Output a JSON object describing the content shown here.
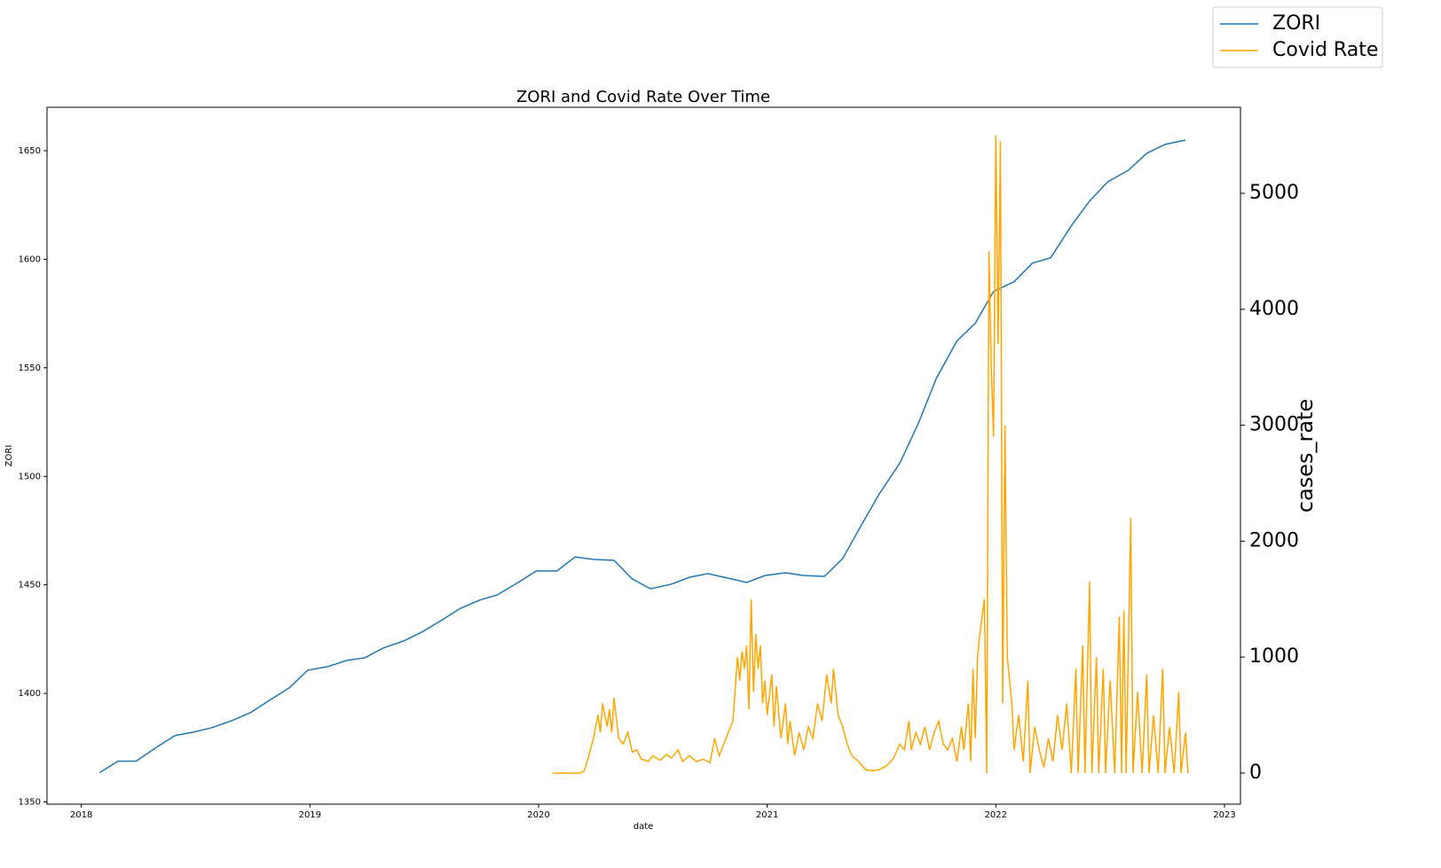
{
  "chart_data": {
    "type": "line",
    "title": "ZORI and Covid Rate Over Time",
    "xlabel": "date",
    "ylabel": "ZORI",
    "y2label": "cases_rate",
    "xlim": [
      2017.85,
      2023.07
    ],
    "xticks": [
      2018,
      2019,
      2020,
      2021,
      2022,
      2023
    ],
    "ylim": [
      1349,
      1670
    ],
    "yticks": [
      1350,
      1400,
      1450,
      1500,
      1550,
      1600,
      1650
    ],
    "y2lim": [
      -268,
      5742
    ],
    "y2ticks": [
      0,
      1000,
      2000,
      3000,
      4000,
      5000
    ],
    "legend_loc": "upper right",
    "series": [
      {
        "name": "ZORI",
        "color": "#1f77b4",
        "x": [
          2018.08,
          2018.16,
          2018.24,
          2018.33,
          2018.41,
          2018.49,
          2018.57,
          2018.66,
          2018.74,
          2018.83,
          2018.91,
          2018.99,
          2019.08,
          2019.16,
          2019.24,
          2019.32,
          2019.41,
          2019.49,
          2019.58,
          2019.66,
          2019.74,
          2019.82,
          2019.91,
          2019.99,
          2020.08,
          2020.16,
          2020.24,
          2020.33,
          2020.41,
          2020.49,
          2020.58,
          2020.66,
          2020.74,
          2020.83,
          2020.91,
          2020.99,
          2021.08,
          2021.16,
          2021.25,
          2021.33,
          2021.41,
          2021.49,
          2021.58,
          2021.66,
          2021.74,
          2021.83,
          2021.91,
          2021.99,
          2022.08,
          2022.16,
          2022.24,
          2022.33,
          2022.41,
          2022.49,
          2022.58,
          2022.66,
          2022.74,
          2022.83
        ],
        "values": [
          1363.5,
          1368.8,
          1368.8,
          1375.3,
          1380.6,
          1382.2,
          1384.2,
          1387.5,
          1391.2,
          1397.3,
          1402.6,
          1410.7,
          1412.4,
          1415.2,
          1416.4,
          1420.9,
          1424.2,
          1428.3,
          1434,
          1439.3,
          1442.9,
          1445.4,
          1451.1,
          1456.4,
          1456.4,
          1462.9,
          1461.7,
          1461.3,
          1452.7,
          1448.2,
          1450.3,
          1453.5,
          1455.2,
          1453.1,
          1451.1,
          1454.3,
          1455.6,
          1454.3,
          1453.9,
          1462.1,
          1477.2,
          1491.9,
          1506.1,
          1524.1,
          1545.2,
          1562.4,
          1570.5,
          1585.2,
          1589.7,
          1598.2,
          1600.7,
          1615.4,
          1626.8,
          1635.7,
          1641,
          1648.8,
          1652.9,
          1654.9
        ]
      },
      {
        "name": "Covid Rate",
        "color": "#ffa500",
        "axis": "y2",
        "x": [
          2020.06,
          2020.1,
          2020.14,
          2020.18,
          2020.2,
          2020.22,
          2020.24,
          2020.26,
          2020.27,
          2020.28,
          2020.3,
          2020.31,
          2020.32,
          2020.33,
          2020.35,
          2020.37,
          2020.39,
          2020.41,
          2020.43,
          2020.45,
          2020.48,
          2020.5,
          2020.53,
          2020.56,
          2020.58,
          2020.61,
          2020.63,
          2020.66,
          2020.69,
          2020.72,
          2020.75,
          2020.77,
          2020.79,
          2020.81,
          2020.83,
          2020.85,
          2020.87,
          2020.88,
          2020.89,
          2020.9,
          2020.91,
          2020.92,
          2020.93,
          2020.94,
          2020.95,
          2020.96,
          2020.97,
          2020.98,
          2020.99,
          2021.0,
          2021.02,
          2021.03,
          2021.04,
          2021.06,
          2021.08,
          2021.09,
          2021.1,
          2021.12,
          2021.14,
          2021.16,
          2021.18,
          2021.2,
          2021.22,
          2021.24,
          2021.26,
          2021.28,
          2021.29,
          2021.31,
          2021.33,
          2021.35,
          2021.37,
          2021.4,
          2021.43,
          2021.46,
          2021.49,
          2021.52,
          2021.55,
          2021.58,
          2021.6,
          2021.62,
          2021.63,
          2021.65,
          2021.67,
          2021.69,
          2021.71,
          2021.73,
          2021.75,
          2021.77,
          2021.79,
          2021.81,
          2021.83,
          2021.85,
          2021.86,
          2021.88,
          2021.89,
          2021.9,
          2021.91,
          2021.92,
          2021.93,
          2021.95,
          2021.96,
          2021.97,
          2021.98,
          2021.99,
          2022.0,
          2022.01,
          2022.02,
          2022.03,
          2022.04,
          2022.05,
          2022.07,
          2022.08,
          2022.1,
          2022.12,
          2022.14,
          2022.15,
          2022.17,
          2022.19,
          2022.21,
          2022.23,
          2022.25,
          2022.27,
          2022.29,
          2022.31,
          2022.33,
          2022.35,
          2022.36,
          2022.38,
          2022.39,
          2022.41,
          2022.42,
          2022.44,
          2022.45,
          2022.47,
          2022.48,
          2022.5,
          2022.52,
          2022.54,
          2022.55,
          2022.56,
          2022.57,
          2022.59,
          2022.6,
          2022.62,
          2022.64,
          2022.66,
          2022.67,
          2022.69,
          2022.71,
          2022.73,
          2022.74,
          2022.76,
          2022.78,
          2022.8,
          2022.81,
          2022.83,
          2022.84
        ],
        "values": [
          0,
          0,
          0,
          0,
          20,
          150,
          300,
          500,
          350,
          600,
          400,
          550,
          350,
          650,
          300,
          250,
          350,
          180,
          200,
          120,
          100,
          150,
          110,
          160,
          130,
          200,
          100,
          150,
          100,
          120,
          90,
          300,
          150,
          250,
          350,
          450,
          1000,
          800,
          1050,
          900,
          1100,
          550,
          1500,
          700,
          1200,
          900,
          1100,
          600,
          800,
          500,
          850,
          400,
          750,
          300,
          600,
          250,
          450,
          150,
          350,
          200,
          400,
          300,
          600,
          450,
          850,
          600,
          900,
          500,
          400,
          250,
          150,
          100,
          30,
          20,
          30,
          60,
          120,
          250,
          200,
          450,
          200,
          350,
          250,
          400,
          200,
          350,
          450,
          250,
          200,
          300,
          100,
          400,
          200,
          600,
          100,
          900,
          300,
          1000,
          1200,
          1500,
          0,
          4500,
          3500,
          2900,
          5500,
          3700,
          5450,
          600,
          3000,
          1000,
          600,
          200,
          500,
          100,
          800,
          0,
          400,
          200,
          50,
          300,
          100,
          500,
          200,
          600,
          0,
          900,
          0,
          1100,
          0,
          1650,
          0,
          1000,
          0,
          900,
          0,
          800,
          0,
          1350,
          0,
          1400,
          0,
          2200,
          0,
          700,
          0,
          850,
          0,
          500,
          0,
          900,
          0,
          400,
          0,
          700,
          0,
          350,
          0
        ]
      }
    ]
  }
}
